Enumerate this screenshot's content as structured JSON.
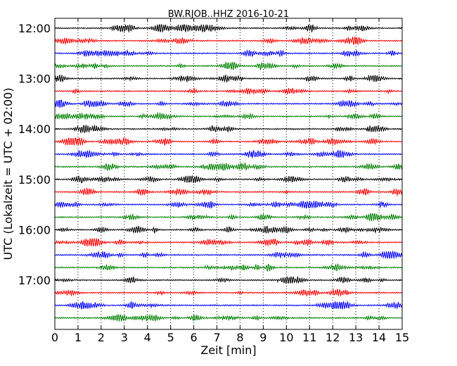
{
  "chart_data": {
    "type": "line",
    "title": "BW.RJOB..HHZ 2016-10-21",
    "xlabel": "Zeit  [min]",
    "ylabel": "UTC (Lokalzeit = UTC + 02:00)",
    "xlim": [
      0,
      15
    ],
    "x_ticks": [
      0,
      1,
      2,
      3,
      4,
      5,
      6,
      7,
      8,
      9,
      10,
      11,
      12,
      13,
      14,
      15
    ],
    "x_tick_labels": [
      "0",
      "1",
      "2",
      "3",
      "4",
      "5",
      "6",
      "7",
      "8",
      "9",
      "10",
      "11",
      "12",
      "13",
      "14",
      "15"
    ],
    "y_tick_labels": [
      "12:00",
      "13:00",
      "14:00",
      "15:00",
      "16:00",
      "17:00"
    ],
    "grid": "vertical dotted at each minute",
    "interval_minutes": 15,
    "trace_colors": [
      "#000000",
      "#ff0000",
      "#0000ff",
      "#008000"
    ],
    "trace_start_times": [
      "12:00",
      "12:15",
      "12:30",
      "12:45",
      "13:00",
      "13:15",
      "13:30",
      "13:45",
      "14:00",
      "14:15",
      "14:30",
      "14:45",
      "15:00",
      "15:15",
      "15:30",
      "15:45",
      "16:00",
      "16:15",
      "16:30",
      "16:45",
      "17:00",
      "17:15",
      "17:30",
      "17:45"
    ]
  }
}
